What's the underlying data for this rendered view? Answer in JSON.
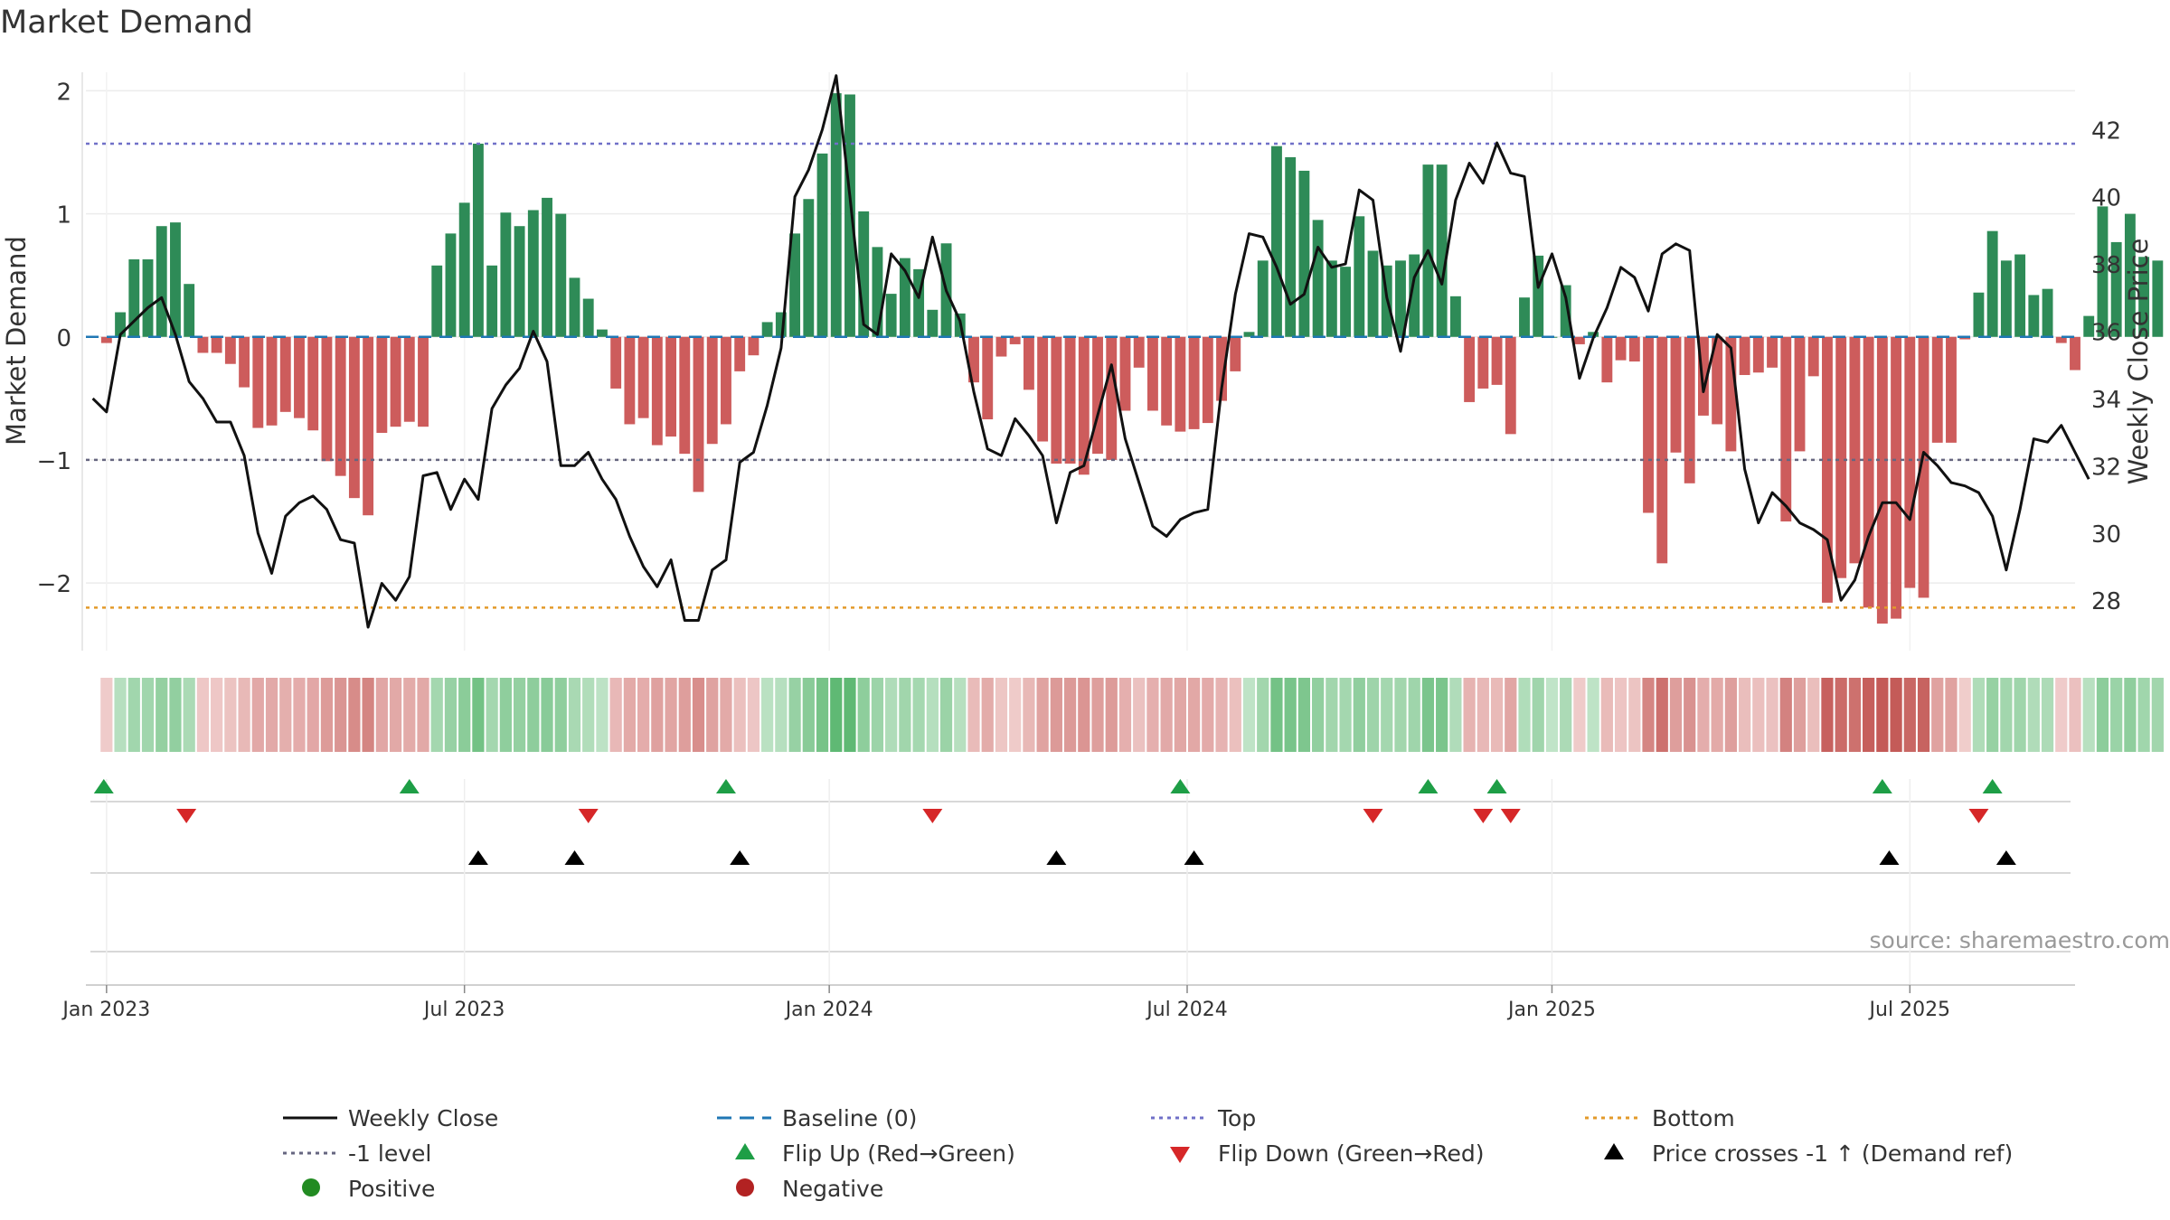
{
  "chart_data": {
    "type": "bar",
    "title": "Market Demand",
    "ylabel_left": "Market Demand",
    "ylabel_right": "Weekly Close Price",
    "source": "source: sharemaestro.com",
    "ylim_left": [
      -2.55,
      2.15
    ],
    "ylim_right": [
      26.5,
      43.7
    ],
    "yticks_left": [
      2,
      1,
      0,
      -1,
      -2
    ],
    "ytick_labels_left": [
      "2",
      "1",
      "0",
      "−1",
      "−2"
    ],
    "yticks_right": [
      42,
      40,
      38,
      36,
      34,
      32,
      30,
      28
    ],
    "ytick_labels_right": [
      "42",
      "40",
      "38",
      "36",
      "34",
      "32",
      "30",
      "28"
    ],
    "x_range": [
      -1.5,
      143
    ],
    "x_ticks": [
      {
        "x": 0,
        "label": "Jan 2023"
      },
      {
        "x": 26,
        "label": "Jul 2023"
      },
      {
        "x": 52.5,
        "label": "Jan 2024"
      },
      {
        "x": 78.5,
        "label": "Jul 2024"
      },
      {
        "x": 105,
        "label": "Jan 2025"
      },
      {
        "x": 131,
        "label": "Jul 2025"
      }
    ],
    "reference_lines": {
      "top": 1.57,
      "bottom": -2.2,
      "minus_one": -1.0,
      "baseline": 0
    },
    "demand": [
      -0.05,
      0.2,
      0.63,
      0.63,
      0.9,
      0.93,
      0.43,
      -0.13,
      -0.13,
      -0.22,
      -0.41,
      -0.74,
      -0.72,
      -0.61,
      -0.66,
      -0.76,
      -1.01,
      -1.13,
      -1.31,
      -1.45,
      -0.78,
      -0.73,
      -0.69,
      -0.73,
      0.58,
      0.84,
      1.09,
      1.57,
      0.58,
      1.01,
      0.9,
      1.03,
      1.13,
      1.0,
      0.48,
      0.31,
      0.06,
      -0.42,
      -0.71,
      -0.66,
      -0.88,
      -0.81,
      -0.95,
      -1.26,
      -0.87,
      -0.71,
      -0.28,
      -0.15,
      0.12,
      0.2,
      0.84,
      1.12,
      1.49,
      1.98,
      1.97,
      1.02,
      0.73,
      0.35,
      0.64,
      0.55,
      0.22,
      0.76,
      0.19,
      -0.37,
      -0.67,
      -0.16,
      -0.06,
      -0.43,
      -0.85,
      -1.03,
      -1.03,
      -1.12,
      -0.95,
      -1.0,
      -0.6,
      -0.25,
      -0.6,
      -0.72,
      -0.77,
      -0.75,
      -0.7,
      -0.52,
      -0.28,
      0.04,
      0.62,
      1.55,
      1.46,
      1.35,
      0.95,
      0.62,
      0.57,
      0.98,
      0.7,
      0.58,
      0.62,
      0.67,
      1.4,
      1.4,
      0.33,
      -0.53,
      -0.42,
      -0.39,
      -0.79,
      0.32,
      0.66,
      0.0,
      0.42,
      -0.06,
      0.04,
      -0.37,
      -0.19,
      -0.2,
      -1.43,
      -1.84,
      -0.94,
      -1.19,
      -0.64,
      -0.71,
      -0.93,
      -0.31,
      -0.29,
      -0.25,
      -1.5,
      -0.93,
      -0.32,
      -2.16,
      -1.96,
      -1.84,
      -2.2,
      -2.33,
      -2.29,
      -2.04,
      -2.12,
      -0.86,
      -0.86,
      -0.02,
      0.36,
      0.86,
      0.62,
      0.67,
      0.34,
      0.39,
      -0.05,
      -0.27,
      0.17,
      1.06,
      0.77,
      1.0,
      0.65,
      0.62
    ],
    "weekly_close": [
      [
        -1,
        34.0
      ],
      [
        0,
        33.6
      ],
      [
        1,
        35.9
      ],
      [
        2,
        36.3
      ],
      [
        3,
        36.7
      ],
      [
        4,
        37.0
      ],
      [
        5,
        35.9
      ],
      [
        6,
        34.5
      ],
      [
        7,
        34.0
      ],
      [
        8,
        33.3
      ],
      [
        9,
        33.3
      ],
      [
        10,
        32.3
      ],
      [
        11,
        30.0
      ],
      [
        12,
        28.8
      ],
      [
        13,
        30.5
      ],
      [
        14,
        30.9
      ],
      [
        15,
        31.1
      ],
      [
        16,
        30.7
      ],
      [
        17,
        29.8
      ],
      [
        18,
        29.7
      ],
      [
        19,
        27.2
      ],
      [
        20,
        28.5
      ],
      [
        21,
        28.0
      ],
      [
        22,
        28.7
      ],
      [
        23,
        31.7
      ],
      [
        24,
        31.8
      ],
      [
        25,
        30.7
      ],
      [
        26,
        31.6
      ],
      [
        27,
        31.0
      ],
      [
        28,
        33.7
      ],
      [
        29,
        34.4
      ],
      [
        30,
        34.9
      ],
      [
        31,
        36.0
      ],
      [
        32,
        35.1
      ],
      [
        33,
        32.0
      ],
      [
        34,
        32.0
      ],
      [
        35,
        32.4
      ],
      [
        36,
        31.6
      ],
      [
        37,
        31.0
      ],
      [
        38,
        29.9
      ],
      [
        39,
        29.0
      ],
      [
        40,
        28.4
      ],
      [
        41,
        29.2
      ],
      [
        42,
        27.4
      ],
      [
        43,
        27.4
      ],
      [
        44,
        28.9
      ],
      [
        45,
        29.2
      ],
      [
        46,
        32.1
      ],
      [
        47,
        32.4
      ],
      [
        48,
        33.8
      ],
      [
        49,
        35.5
      ],
      [
        50,
        40.0
      ],
      [
        51,
        40.8
      ],
      [
        52,
        42.0
      ],
      [
        53,
        43.6
      ],
      [
        54,
        40.0
      ],
      [
        55,
        36.2
      ],
      [
        56,
        35.9
      ],
      [
        57,
        38.3
      ],
      [
        58,
        37.8
      ],
      [
        59,
        37.0
      ],
      [
        60,
        38.8
      ],
      [
        61,
        37.2
      ],
      [
        62,
        36.3
      ],
      [
        63,
        34.2
      ],
      [
        64,
        32.5
      ],
      [
        65,
        32.3
      ],
      [
        66,
        33.4
      ],
      [
        67,
        32.9
      ],
      [
        68,
        32.3
      ],
      [
        69,
        30.3
      ],
      [
        70,
        31.8
      ],
      [
        71,
        32.0
      ],
      [
        72,
        33.5
      ],
      [
        73,
        35.0
      ],
      [
        74,
        32.8
      ],
      [
        75,
        31.5
      ],
      [
        76,
        30.2
      ],
      [
        77,
        29.9
      ],
      [
        78,
        30.4
      ],
      [
        79,
        30.6
      ],
      [
        80,
        30.7
      ],
      [
        81,
        34.3
      ],
      [
        82,
        37.1
      ],
      [
        83,
        38.9
      ],
      [
        84,
        38.8
      ],
      [
        85,
        37.9
      ],
      [
        86,
        36.8
      ],
      [
        87,
        37.1
      ],
      [
        88,
        38.5
      ],
      [
        89,
        37.9
      ],
      [
        90,
        38.0
      ],
      [
        91,
        40.2
      ],
      [
        92,
        39.9
      ],
      [
        93,
        37.0
      ],
      [
        94,
        35.4
      ],
      [
        95,
        37.6
      ],
      [
        96,
        38.4
      ],
      [
        97,
        37.4
      ],
      [
        98,
        39.9
      ],
      [
        99,
        41.0
      ],
      [
        100,
        40.4
      ],
      [
        101,
        41.6
      ],
      [
        102,
        40.7
      ],
      [
        103,
        40.6
      ],
      [
        104,
        37.3
      ],
      [
        105,
        38.3
      ],
      [
        106,
        37.0
      ],
      [
        107,
        34.6
      ],
      [
        108,
        35.8
      ],
      [
        109,
        36.7
      ],
      [
        110,
        37.9
      ],
      [
        111,
        37.6
      ],
      [
        112,
        36.6
      ],
      [
        113,
        38.3
      ],
      [
        114,
        38.6
      ],
      [
        115,
        38.4
      ],
      [
        116,
        34.2
      ],
      [
        117,
        35.9
      ],
      [
        118,
        35.5
      ],
      [
        119,
        31.9
      ],
      [
        120,
        30.3
      ],
      [
        121,
        31.2
      ],
      [
        122,
        30.8
      ],
      [
        123,
        30.3
      ],
      [
        124,
        30.1
      ],
      [
        125,
        29.8
      ],
      [
        126,
        28.0
      ],
      [
        127,
        28.6
      ],
      [
        128,
        29.9
      ],
      [
        129,
        30.9
      ],
      [
        130,
        30.9
      ],
      [
        131,
        30.4
      ],
      [
        132,
        32.4
      ],
      [
        133,
        32.0
      ],
      [
        134,
        31.5
      ],
      [
        135,
        31.4
      ],
      [
        136,
        31.2
      ],
      [
        137,
        30.5
      ],
      [
        138,
        28.9
      ],
      [
        139,
        30.7
      ],
      [
        140,
        32.8
      ],
      [
        141,
        32.7
      ],
      [
        142,
        33.2
      ],
      [
        143,
        32.4
      ],
      [
        144,
        31.6
      ]
    ],
    "flip_up_x": [
      -0.2,
      22,
      45,
      78,
      96,
      101,
      129,
      137
    ],
    "flip_down_x": [
      5.8,
      35,
      60,
      92,
      100,
      102,
      136
    ],
    "price_cross_x": [
      27,
      34,
      46,
      69,
      79,
      129.5,
      138
    ],
    "legend": {
      "weekly_close": "Weekly Close",
      "baseline": "Baseline (0)",
      "top": "Top",
      "bottom": "Bottom",
      "minus_one": "-1 level",
      "flip_up": "Flip Up (Red→Green)",
      "flip_down": "Flip Down (Green→Red)",
      "price_cross": "Price crosses -1 ↑ (Demand ref)",
      "positive": "Positive",
      "negative": "Negative"
    },
    "colors": {
      "positive": "#2e8b57",
      "negative": "#cd5c5c",
      "line": "#111111",
      "baseline": "#1f77b4",
      "top": "#7070c8",
      "bottom": "#e39a2a",
      "minus_one": "#666680",
      "flip_up": "#1e9e46",
      "flip_down": "#d62728",
      "price_cross": "#000000",
      "legend_positive_dot": "#228b22",
      "legend_negative_dot": "#b22222"
    }
  }
}
